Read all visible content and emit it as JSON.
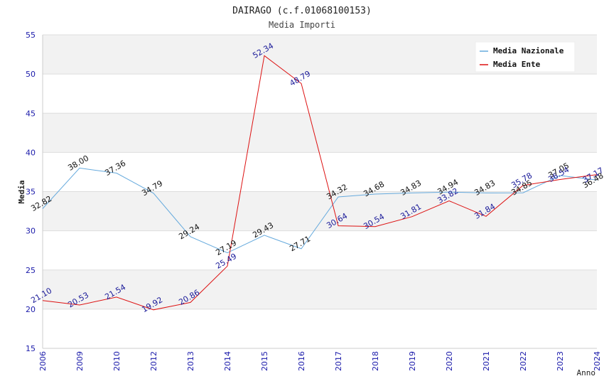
{
  "chart_data": {
    "type": "line",
    "title": "DAIRAGO (c.f.01068100153)",
    "subtitle": "Media Importi",
    "xlabel": "Anno",
    "ylabel": "Media",
    "ylim": [
      15,
      55
    ],
    "yticks": [
      15,
      20,
      25,
      30,
      35,
      40,
      45,
      50,
      55
    ],
    "categories": [
      "2006",
      "2009",
      "2010",
      "2012",
      "2013",
      "2014",
      "2015",
      "2016",
      "2017",
      "2018",
      "2019",
      "2020",
      "2021",
      "2022",
      "2023",
      "2024"
    ],
    "series": [
      {
        "name": "Media Nazionale",
        "color": "#66aadd",
        "values": [
          32.82,
          38.0,
          37.36,
          34.79,
          29.24,
          27.19,
          29.43,
          27.71,
          34.32,
          34.68,
          34.83,
          34.94,
          34.83,
          34.85,
          37.05,
          36.48
        ],
        "labels": [
          "32.82",
          "38.00",
          "37.36",
          "34.79",
          "29.24",
          "27.19",
          "29.43",
          "27.71",
          "34.32",
          "34.68",
          "34.83",
          "34.94",
          "34.83",
          "34.85",
          "37.05",
          "36.48"
        ]
      },
      {
        "name": "Media Ente",
        "color": "#dd1111",
        "values": [
          21.1,
          20.53,
          21.54,
          19.92,
          20.86,
          25.49,
          52.34,
          48.79,
          30.64,
          30.54,
          31.81,
          33.82,
          31.84,
          35.78,
          36.54,
          37.17
        ],
        "labels": [
          "21.10",
          "20.53",
          "21.54",
          "19.92",
          "20.86",
          "25.49",
          "52.34",
          "48.79",
          "30.64",
          "30.54",
          "31.81",
          "33.82",
          "31.84",
          "35.78",
          "36.54",
          "37.17"
        ]
      }
    ],
    "legend": "top-right",
    "grid": true
  }
}
